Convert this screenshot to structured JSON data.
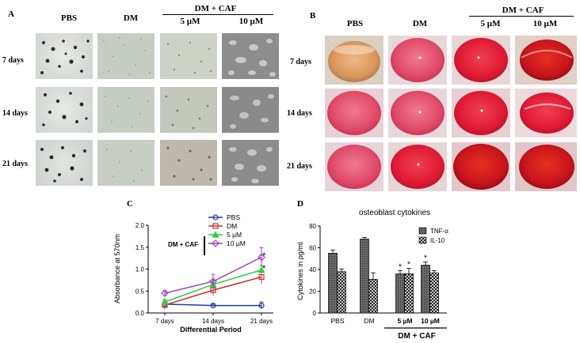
{
  "panelA": {
    "label": "A",
    "columns": [
      "PBS",
      "DM",
      "5  µM",
      "10  µM"
    ],
    "group_label": "DM + CAF",
    "rows": [
      "7 days",
      "14 days",
      "21 days"
    ]
  },
  "panelB": {
    "label": "B",
    "columns": [
      "PBS",
      "DM",
      "5  µM",
      "10  µM"
    ],
    "group_label": "DM + CAF",
    "rows": [
      "7 days",
      "14 days",
      "21 days"
    ]
  },
  "panelC": {
    "label": "C",
    "group_label": "DM + CAF",
    "legend": [
      "PBS",
      "DM",
      "5 µM",
      "10 µM"
    ],
    "significance": "*"
  },
  "panelD": {
    "label": "D",
    "legend": [
      "TNF-α",
      "IL-10"
    ],
    "group_label": "DM + CAF",
    "significance": "*"
  },
  "colors": {
    "pbs": "#1f3fa8",
    "dm": "#c8322a",
    "caf5": "#2ecc40",
    "caf10": "#9b3fc4",
    "medium_red": "#d91c3a",
    "medium_pink": "#e0506e",
    "medium_orange": "#d9a070"
  },
  "chart_data": [
    {
      "type": "line",
      "title": "",
      "xlabel": "Differential Period",
      "ylabel": "Absorbance at 570nm",
      "categories": [
        "7 days",
        "14 days",
        "21 days"
      ],
      "ylim": [
        0,
        2.0
      ],
      "yticks": [
        "0.0",
        "0.5",
        "1.0",
        "1.5",
        "2.0"
      ],
      "series": [
        {
          "name": "PBS",
          "values": [
            0.2,
            0.17,
            0.17
          ],
          "errors": [
            0.08,
            0.03,
            0.08
          ]
        },
        {
          "name": "DM",
          "values": [
            0.18,
            0.52,
            0.82
          ],
          "errors": [
            0.1,
            0.12,
            0.15
          ]
        },
        {
          "name": "5 µM",
          "values": [
            0.25,
            0.65,
            0.98
          ],
          "errors": [
            0.06,
            0.1,
            0.1
          ]
        },
        {
          "name": "10 µM",
          "values": [
            0.45,
            0.72,
            1.27
          ],
          "errors": [
            0.06,
            0.16,
            0.22
          ]
        }
      ]
    },
    {
      "type": "bar",
      "title": "osteoblast cytokines",
      "xlabel": "",
      "ylabel": "Cytokines in pg/ml",
      "categories": [
        "PBS",
        "DM",
        "5 µM",
        "10 µM"
      ],
      "ylim": [
        0,
        80
      ],
      "yticks": [
        "0",
        "20",
        "40",
        "60",
        "80"
      ],
      "series": [
        {
          "name": "TNF-α",
          "values": [
            55,
            68,
            36,
            44
          ],
          "errors": [
            3,
            1.5,
            3,
            3
          ]
        },
        {
          "name": "IL-10",
          "values": [
            38,
            31,
            36,
            37
          ],
          "errors": [
            2.5,
            6,
            5,
            2
          ]
        }
      ]
    }
  ]
}
